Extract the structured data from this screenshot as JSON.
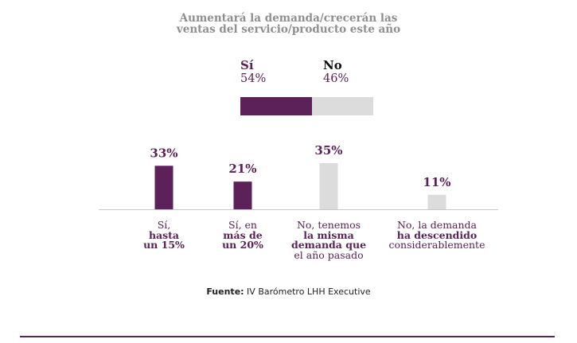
{
  "colors": {
    "accent": "#5b2158",
    "neutral": "#dcdcdc",
    "title": "#8f8f8f"
  },
  "title_lines": [
    "Aumentará la demanda/crecerán las",
    "ventas del servicio/producto este año"
  ],
  "split": {
    "yes": {
      "label": "Sí",
      "pct": "54%",
      "value": 54
    },
    "no": {
      "label": "No",
      "pct": "46%",
      "value": 46
    }
  },
  "chart_data": {
    "type": "bar",
    "title": "Aumentará la demanda/crecerán las ventas del servicio/producto este año",
    "categories": [
      "Sí, hasta un 15%",
      "Sí, en más de un 20%",
      "No, tenemos la misma demanda que el año pasado",
      "No, la demanda ha descendido considerablemente"
    ],
    "values": [
      33,
      21,
      35,
      11
    ],
    "value_labels": [
      "33%",
      "21%",
      "35%",
      "11%"
    ],
    "bar_colors": [
      "#5b2158",
      "#5b2158",
      "#dcdcdc",
      "#dcdcdc"
    ],
    "ylim": [
      0,
      40
    ],
    "grid": false,
    "legend": "none"
  },
  "category_labels": [
    {
      "plain": [
        "Sí,"
      ],
      "bold": [
        "hasta",
        "un 15%"
      ]
    },
    {
      "plain": [
        "Sí, en"
      ],
      "bold": [
        "más de",
        "un 20%"
      ]
    },
    {
      "plain": [
        "No, tenemos"
      ],
      "bold": [
        "la misma",
        "demanda que"
      ],
      "plain2": [
        "el año pasado"
      ]
    },
    {
      "plain": [
        "No, la demanda"
      ],
      "bold": [
        "ha descendido"
      ],
      "plain2": [
        "considerablemente"
      ]
    }
  ],
  "source": {
    "label": "Fuente:",
    "text": " IV Barómetro LHH Executive"
  }
}
